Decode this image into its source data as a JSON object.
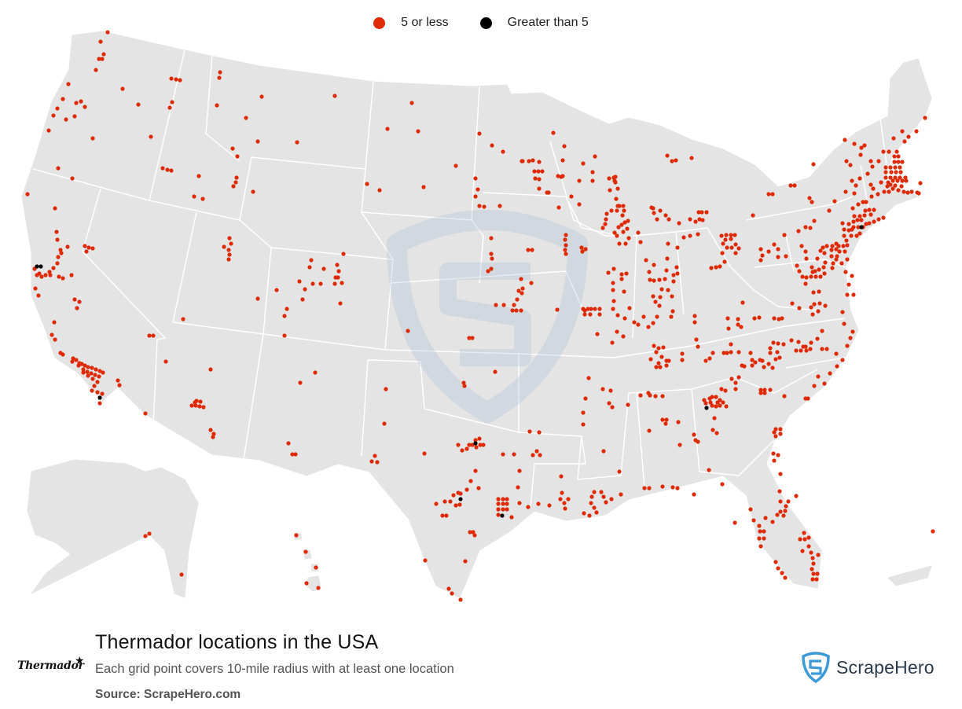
{
  "legend": {
    "small": {
      "label": "5 or less",
      "color": "#de2a06"
    },
    "large": {
      "label": "Greater than 5",
      "color": "#000000"
    }
  },
  "footer": {
    "title": "Thermador locations in the USA",
    "subtitle": "Each grid point covers 10-mile radius with at least one location",
    "source": "Source: ScrapeHero.com"
  },
  "brand": {
    "name": "Thermador",
    "icon": "star-icon"
  },
  "watermark": {
    "name": "ScrapeHero",
    "icon": "shield-s-icon",
    "color": "#2a3a4a"
  },
  "map_colors": {
    "land": "#e4e4e4",
    "border": "#ffffff",
    "watermark": "#9ab6d2"
  }
}
